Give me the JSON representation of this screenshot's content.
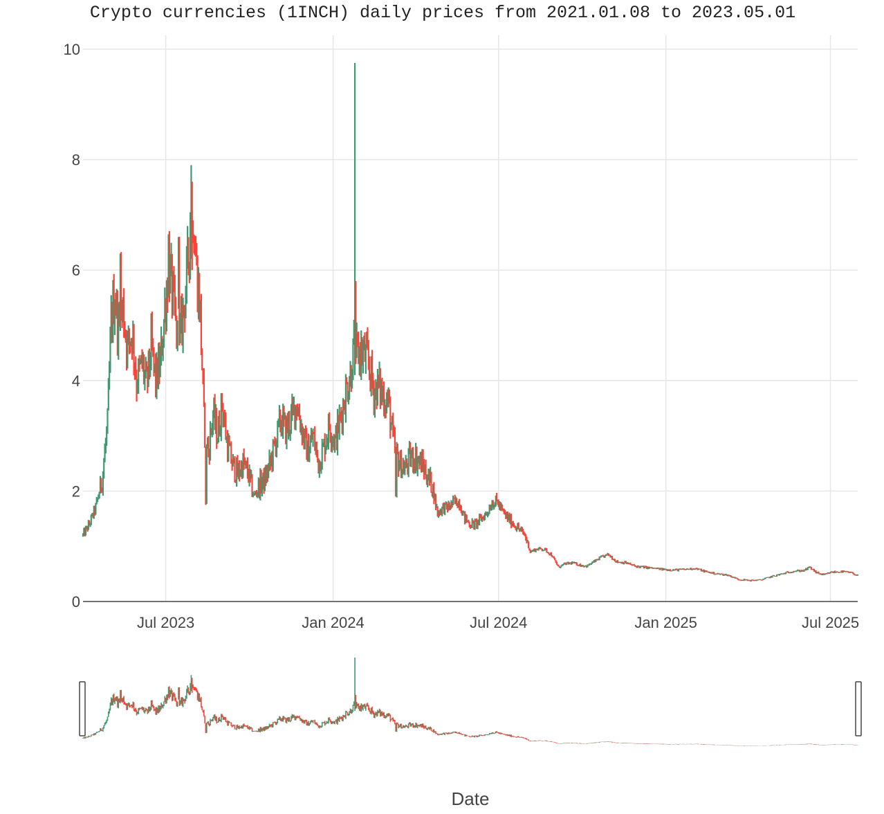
{
  "chart_data": {
    "type": "candlestick",
    "title": "Crypto currencies (1INCH) daily prices from 2021.01.08 to 2023.05.01",
    "xlabel": "Date",
    "ylabel": "",
    "xlim": [
      "2023-04-01",
      "2025-07-31"
    ],
    "ylim": [
      0,
      10
    ],
    "y_ticks": [
      "0",
      "2",
      "4",
      "6",
      "8",
      "10"
    ],
    "x_ticks": [
      {
        "date": "2023-07-01",
        "label": "Jul 2023"
      },
      {
        "date": "2024-01-01",
        "label": "Jan 2024"
      },
      {
        "date": "2024-07-01",
        "label": "Jul 2024"
      },
      {
        "date": "2025-01-01",
        "label": "Jan 2025"
      },
      {
        "date": "2025-07-01",
        "label": "Jul 2025"
      }
    ],
    "grid": true,
    "rangeslider": true,
    "increasing_color": "#3D9970",
    "decreasing_color": "#FF4136",
    "close_keypoints": [
      [
        "2023-04-01",
        1.2
      ],
      [
        "2023-04-08",
        1.4
      ],
      [
        "2023-04-15",
        1.7
      ],
      [
        "2023-04-22",
        2.2
      ],
      [
        "2023-04-28",
        3.2
      ],
      [
        "2023-05-02",
        5.0
      ],
      [
        "2023-05-06",
        5.6
      ],
      [
        "2023-05-10",
        4.9
      ],
      [
        "2023-05-15",
        5.3
      ],
      [
        "2023-05-20",
        4.6
      ],
      [
        "2023-05-25",
        4.9
      ],
      [
        "2023-05-30",
        4.0
      ],
      [
        "2023-06-05",
        4.3
      ],
      [
        "2023-06-10",
        3.9
      ],
      [
        "2023-06-15",
        4.6
      ],
      [
        "2023-06-20",
        4.0
      ],
      [
        "2023-06-25",
        4.3
      ],
      [
        "2023-07-01",
        5.5
      ],
      [
        "2023-07-05",
        6.0
      ],
      [
        "2023-07-10",
        5.3
      ],
      [
        "2023-07-15",
        4.5
      ],
      [
        "2023-07-20",
        5.2
      ],
      [
        "2023-07-25",
        6.0
      ],
      [
        "2023-07-30",
        7.4
      ],
      [
        "2023-08-04",
        6.0
      ],
      [
        "2023-08-08",
        5.2
      ],
      [
        "2023-08-12",
        3.3
      ],
      [
        "2023-08-17",
        2.7
      ],
      [
        "2023-08-22",
        3.4
      ],
      [
        "2023-08-27",
        3.0
      ],
      [
        "2023-09-01",
        3.6
      ],
      [
        "2023-09-06",
        2.9
      ],
      [
        "2023-09-12",
        2.5
      ],
      [
        "2023-09-18",
        2.3
      ],
      [
        "2023-09-24",
        2.5
      ],
      [
        "2023-09-30",
        2.3
      ],
      [
        "2023-10-06",
        1.9
      ],
      [
        "2023-10-12",
        2.1
      ],
      [
        "2023-10-18",
        2.2
      ],
      [
        "2023-10-24",
        2.5
      ],
      [
        "2023-10-30",
        2.9
      ],
      [
        "2023-11-05",
        3.3
      ],
      [
        "2023-11-10",
        3.1
      ],
      [
        "2023-11-16",
        3.3
      ],
      [
        "2023-11-22",
        3.6
      ],
      [
        "2023-11-28",
        3.1
      ],
      [
        "2023-12-04",
        2.7
      ],
      [
        "2023-12-10",
        3.0
      ],
      [
        "2023-12-16",
        2.5
      ],
      [
        "2023-12-22",
        2.8
      ],
      [
        "2023-12-28",
        3.2
      ],
      [
        "2024-01-03",
        2.9
      ],
      [
        "2024-01-09",
        3.3
      ],
      [
        "2024-01-15",
        3.8
      ],
      [
        "2024-01-20",
        4.1
      ],
      [
        "2024-01-24",
        4.6
      ],
      [
        "2024-01-28",
        4.5
      ],
      [
        "2024-02-03",
        4.5
      ],
      [
        "2024-02-09",
        4.3
      ],
      [
        "2024-02-15",
        3.8
      ],
      [
        "2024-02-20",
        3.9
      ],
      [
        "2024-02-26",
        3.7
      ],
      [
        "2024-03-02",
        3.6
      ],
      [
        "2024-03-08",
        2.8
      ],
      [
        "2024-03-14",
        2.5
      ],
      [
        "2024-03-20",
        2.4
      ],
      [
        "2024-03-26",
        2.6
      ],
      [
        "2024-04-01",
        2.6
      ],
      [
        "2024-04-07",
        2.5
      ],
      [
        "2024-04-13",
        2.3
      ],
      [
        "2024-04-19",
        2.1
      ],
      [
        "2024-04-25",
        1.6
      ],
      [
        "2024-05-01",
        1.7
      ],
      [
        "2024-05-07",
        1.7
      ],
      [
        "2024-05-13",
        1.8
      ],
      [
        "2024-05-19",
        1.8
      ],
      [
        "2024-05-25",
        1.5
      ],
      [
        "2024-05-31",
        1.4
      ],
      [
        "2024-06-06",
        1.4
      ],
      [
        "2024-06-12",
        1.5
      ],
      [
        "2024-06-18",
        1.6
      ],
      [
        "2024-06-24",
        1.8
      ],
      [
        "2024-06-30",
        1.8
      ],
      [
        "2024-07-06",
        1.6
      ],
      [
        "2024-07-12",
        1.5
      ],
      [
        "2024-07-18",
        1.4
      ],
      [
        "2024-07-24",
        1.3
      ],
      [
        "2024-07-30",
        1.2
      ],
      [
        "2024-08-05",
        0.9
      ],
      [
        "2024-08-12",
        0.95
      ],
      [
        "2024-08-20",
        0.95
      ],
      [
        "2024-08-28",
        0.85
      ],
      [
        "2024-09-05",
        0.62
      ],
      [
        "2024-09-12",
        0.68
      ],
      [
        "2024-09-20",
        0.7
      ],
      [
        "2024-09-28",
        0.66
      ],
      [
        "2024-10-06",
        0.64
      ],
      [
        "2024-10-14",
        0.72
      ],
      [
        "2024-10-22",
        0.8
      ],
      [
        "2024-10-30",
        0.85
      ],
      [
        "2024-11-08",
        0.72
      ],
      [
        "2024-11-18",
        0.7
      ],
      [
        "2024-11-28",
        0.64
      ],
      [
        "2024-12-08",
        0.62
      ],
      [
        "2024-12-18",
        0.6
      ],
      [
        "2024-12-30",
        0.58
      ],
      [
        "2025-01-10",
        0.57
      ],
      [
        "2025-01-22",
        0.58
      ],
      [
        "2025-02-02",
        0.6
      ],
      [
        "2025-02-14",
        0.54
      ],
      [
        "2025-02-26",
        0.5
      ],
      [
        "2025-03-10",
        0.48
      ],
      [
        "2025-03-22",
        0.4
      ],
      [
        "2025-04-03",
        0.38
      ],
      [
        "2025-04-15",
        0.39
      ],
      [
        "2025-04-27",
        0.45
      ],
      [
        "2025-05-09",
        0.5
      ],
      [
        "2025-05-21",
        0.55
      ],
      [
        "2025-06-02",
        0.56
      ],
      [
        "2025-06-08",
        0.62
      ],
      [
        "2025-06-16",
        0.52
      ],
      [
        "2025-06-24",
        0.48
      ],
      [
        "2025-07-02",
        0.53
      ],
      [
        "2025-07-14",
        0.54
      ],
      [
        "2025-07-24",
        0.52
      ],
      [
        "2025-07-31",
        0.47
      ]
    ],
    "spikes": [
      {
        "date": "2024-01-25",
        "high": 9.75,
        "open": 4.2,
        "close": 9.6,
        "low": 4.1
      },
      {
        "date": "2024-01-26",
        "high": 5.8,
        "open": 5.8,
        "close": 4.6,
        "low": 4.3
      },
      {
        "date": "2023-07-29",
        "high": 7.9,
        "open": 6.5,
        "close": 7.6,
        "low": 6.2
      },
      {
        "date": "2023-07-30",
        "high": 7.6,
        "open": 7.5,
        "close": 6.8,
        "low": 6.0
      },
      {
        "date": "2023-05-12",
        "high": 6.3,
        "open": 5.2,
        "close": 6.1,
        "low": 4.9
      },
      {
        "date": "2023-07-04",
        "high": 6.65,
        "open": 5.7,
        "close": 6.5,
        "low": 5.5
      },
      {
        "date": "2023-07-15",
        "high": 6.6,
        "open": 5.6,
        "close": 6.4,
        "low": 5.3
      },
      {
        "date": "2023-08-14",
        "high": 2.8,
        "open": 2.7,
        "close": 1.8,
        "low": 1.75
      },
      {
        "date": "2024-03-10",
        "high": 2.8,
        "open": 2.7,
        "close": 1.95,
        "low": 1.9
      }
    ]
  }
}
